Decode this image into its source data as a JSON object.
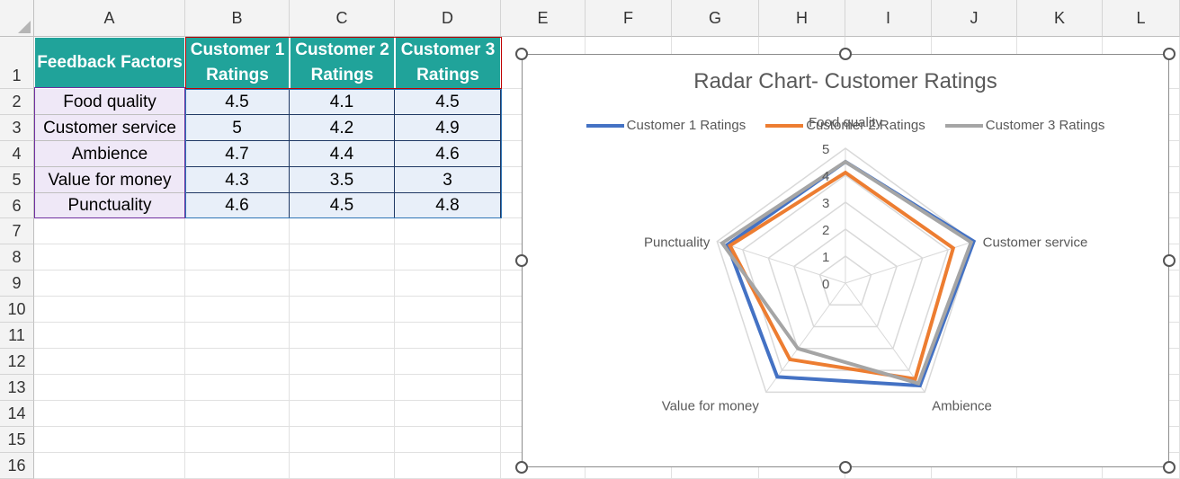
{
  "columns": [
    "A",
    "B",
    "C",
    "D",
    "E",
    "F",
    "G",
    "H",
    "I",
    "J",
    "K",
    "L"
  ],
  "rows": [
    "1",
    "2",
    "3",
    "4",
    "5",
    "6",
    "7",
    "8",
    "9",
    "10",
    "11",
    "12",
    "13",
    "14",
    "15",
    "16"
  ],
  "table": {
    "headers": [
      "Feedback Factors",
      "Customer 1 Ratings",
      "Customer 2 Ratings",
      "Customer 3 Ratings"
    ],
    "rows": [
      [
        "Food quality",
        "4.5",
        "4.1",
        "4.5"
      ],
      [
        "Customer service",
        "5",
        "4.2",
        "4.9"
      ],
      [
        "Ambience",
        "4.7",
        "4.4",
        "4.6"
      ],
      [
        "Value for money",
        "4.3",
        "3.5",
        "3"
      ],
      [
        "Punctuality",
        "4.6",
        "4.5",
        "4.8"
      ]
    ]
  },
  "chart_data": {
    "type": "radar",
    "title": "Radar Chart- Customer Ratings",
    "categories": [
      "Food quality",
      "Customer service",
      "Ambience",
      "Value for money",
      "Punctuality"
    ],
    "series": [
      {
        "name": "Customer 1 Ratings",
        "values": [
          4.5,
          5,
          4.7,
          4.3,
          4.6
        ],
        "color": "#4472c4"
      },
      {
        "name": "Customer 2 Ratings",
        "values": [
          4.1,
          4.2,
          4.4,
          3.5,
          4.5
        ],
        "color": "#ed7d31"
      },
      {
        "name": "Customer 3 Ratings",
        "values": [
          4.5,
          4.9,
          4.6,
          3,
          4.8
        ],
        "color": "#a5a5a5"
      }
    ],
    "axis_ticks": [
      "0",
      "1",
      "2",
      "3",
      "4",
      "5"
    ],
    "rlim": [
      0,
      5
    ],
    "legend_position": "top",
    "grid": true
  },
  "colors": {
    "header_fill": "#20a39a",
    "factor_fill": "#efe8f7",
    "data_fill": "#e8eff9"
  }
}
